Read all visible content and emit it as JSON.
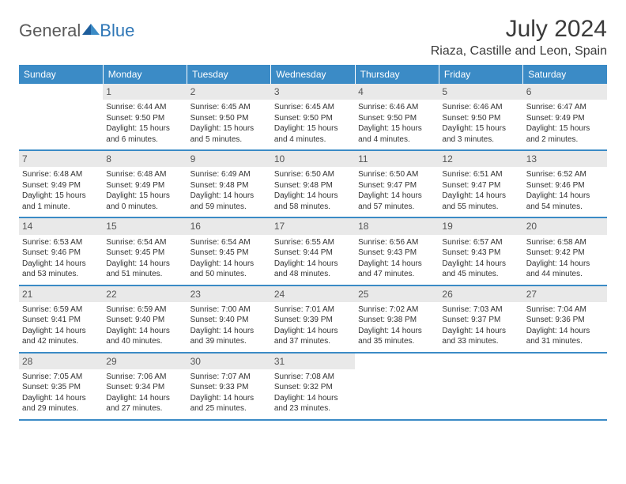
{
  "brand": {
    "name_a": "General",
    "name_b": "Blue"
  },
  "title": "July 2024",
  "location": "Riaza, Castille and Leon, Spain",
  "colors": {
    "header_bg": "#3b8bc6",
    "header_text": "#ffffff",
    "daynum_bg": "#e9e9e9",
    "border": "#3b8bc6",
    "text": "#333333",
    "logo_text": "#5a5a5a",
    "logo_accent": "#2f77b7"
  },
  "weekdays": [
    "Sunday",
    "Monday",
    "Tuesday",
    "Wednesday",
    "Thursday",
    "Friday",
    "Saturday"
  ],
  "weeks": [
    [
      null,
      {
        "n": "1",
        "sr": "6:44 AM",
        "ss": "9:50 PM",
        "d1": "15 hours",
        "d2": "and 6 minutes."
      },
      {
        "n": "2",
        "sr": "6:45 AM",
        "ss": "9:50 PM",
        "d1": "15 hours",
        "d2": "and 5 minutes."
      },
      {
        "n": "3",
        "sr": "6:45 AM",
        "ss": "9:50 PM",
        "d1": "15 hours",
        "d2": "and 4 minutes."
      },
      {
        "n": "4",
        "sr": "6:46 AM",
        "ss": "9:50 PM",
        "d1": "15 hours",
        "d2": "and 4 minutes."
      },
      {
        "n": "5",
        "sr": "6:46 AM",
        "ss": "9:50 PM",
        "d1": "15 hours",
        "d2": "and 3 minutes."
      },
      {
        "n": "6",
        "sr": "6:47 AM",
        "ss": "9:49 PM",
        "d1": "15 hours",
        "d2": "and 2 minutes."
      }
    ],
    [
      {
        "n": "7",
        "sr": "6:48 AM",
        "ss": "9:49 PM",
        "d1": "15 hours",
        "d2": "and 1 minute."
      },
      {
        "n": "8",
        "sr": "6:48 AM",
        "ss": "9:49 PM",
        "d1": "15 hours",
        "d2": "and 0 minutes."
      },
      {
        "n": "9",
        "sr": "6:49 AM",
        "ss": "9:48 PM",
        "d1": "14 hours",
        "d2": "and 59 minutes."
      },
      {
        "n": "10",
        "sr": "6:50 AM",
        "ss": "9:48 PM",
        "d1": "14 hours",
        "d2": "and 58 minutes."
      },
      {
        "n": "11",
        "sr": "6:50 AM",
        "ss": "9:47 PM",
        "d1": "14 hours",
        "d2": "and 57 minutes."
      },
      {
        "n": "12",
        "sr": "6:51 AM",
        "ss": "9:47 PM",
        "d1": "14 hours",
        "d2": "and 55 minutes."
      },
      {
        "n": "13",
        "sr": "6:52 AM",
        "ss": "9:46 PM",
        "d1": "14 hours",
        "d2": "and 54 minutes."
      }
    ],
    [
      {
        "n": "14",
        "sr": "6:53 AM",
        "ss": "9:46 PM",
        "d1": "14 hours",
        "d2": "and 53 minutes."
      },
      {
        "n": "15",
        "sr": "6:54 AM",
        "ss": "9:45 PM",
        "d1": "14 hours",
        "d2": "and 51 minutes."
      },
      {
        "n": "16",
        "sr": "6:54 AM",
        "ss": "9:45 PM",
        "d1": "14 hours",
        "d2": "and 50 minutes."
      },
      {
        "n": "17",
        "sr": "6:55 AM",
        "ss": "9:44 PM",
        "d1": "14 hours",
        "d2": "and 48 minutes."
      },
      {
        "n": "18",
        "sr": "6:56 AM",
        "ss": "9:43 PM",
        "d1": "14 hours",
        "d2": "and 47 minutes."
      },
      {
        "n": "19",
        "sr": "6:57 AM",
        "ss": "9:43 PM",
        "d1": "14 hours",
        "d2": "and 45 minutes."
      },
      {
        "n": "20",
        "sr": "6:58 AM",
        "ss": "9:42 PM",
        "d1": "14 hours",
        "d2": "and 44 minutes."
      }
    ],
    [
      {
        "n": "21",
        "sr": "6:59 AM",
        "ss": "9:41 PM",
        "d1": "14 hours",
        "d2": "and 42 minutes."
      },
      {
        "n": "22",
        "sr": "6:59 AM",
        "ss": "9:40 PM",
        "d1": "14 hours",
        "d2": "and 40 minutes."
      },
      {
        "n": "23",
        "sr": "7:00 AM",
        "ss": "9:40 PM",
        "d1": "14 hours",
        "d2": "and 39 minutes."
      },
      {
        "n": "24",
        "sr": "7:01 AM",
        "ss": "9:39 PM",
        "d1": "14 hours",
        "d2": "and 37 minutes."
      },
      {
        "n": "25",
        "sr": "7:02 AM",
        "ss": "9:38 PM",
        "d1": "14 hours",
        "d2": "and 35 minutes."
      },
      {
        "n": "26",
        "sr": "7:03 AM",
        "ss": "9:37 PM",
        "d1": "14 hours",
        "d2": "and 33 minutes."
      },
      {
        "n": "27",
        "sr": "7:04 AM",
        "ss": "9:36 PM",
        "d1": "14 hours",
        "d2": "and 31 minutes."
      }
    ],
    [
      {
        "n": "28",
        "sr": "7:05 AM",
        "ss": "9:35 PM",
        "d1": "14 hours",
        "d2": "and 29 minutes."
      },
      {
        "n": "29",
        "sr": "7:06 AM",
        "ss": "9:34 PM",
        "d1": "14 hours",
        "d2": "and 27 minutes."
      },
      {
        "n": "30",
        "sr": "7:07 AM",
        "ss": "9:33 PM",
        "d1": "14 hours",
        "d2": "and 25 minutes."
      },
      {
        "n": "31",
        "sr": "7:08 AM",
        "ss": "9:32 PM",
        "d1": "14 hours",
        "d2": "and 23 minutes."
      },
      null,
      null,
      null
    ]
  ],
  "labels": {
    "sunrise": "Sunrise:",
    "sunset": "Sunset:",
    "daylight": "Daylight:"
  }
}
